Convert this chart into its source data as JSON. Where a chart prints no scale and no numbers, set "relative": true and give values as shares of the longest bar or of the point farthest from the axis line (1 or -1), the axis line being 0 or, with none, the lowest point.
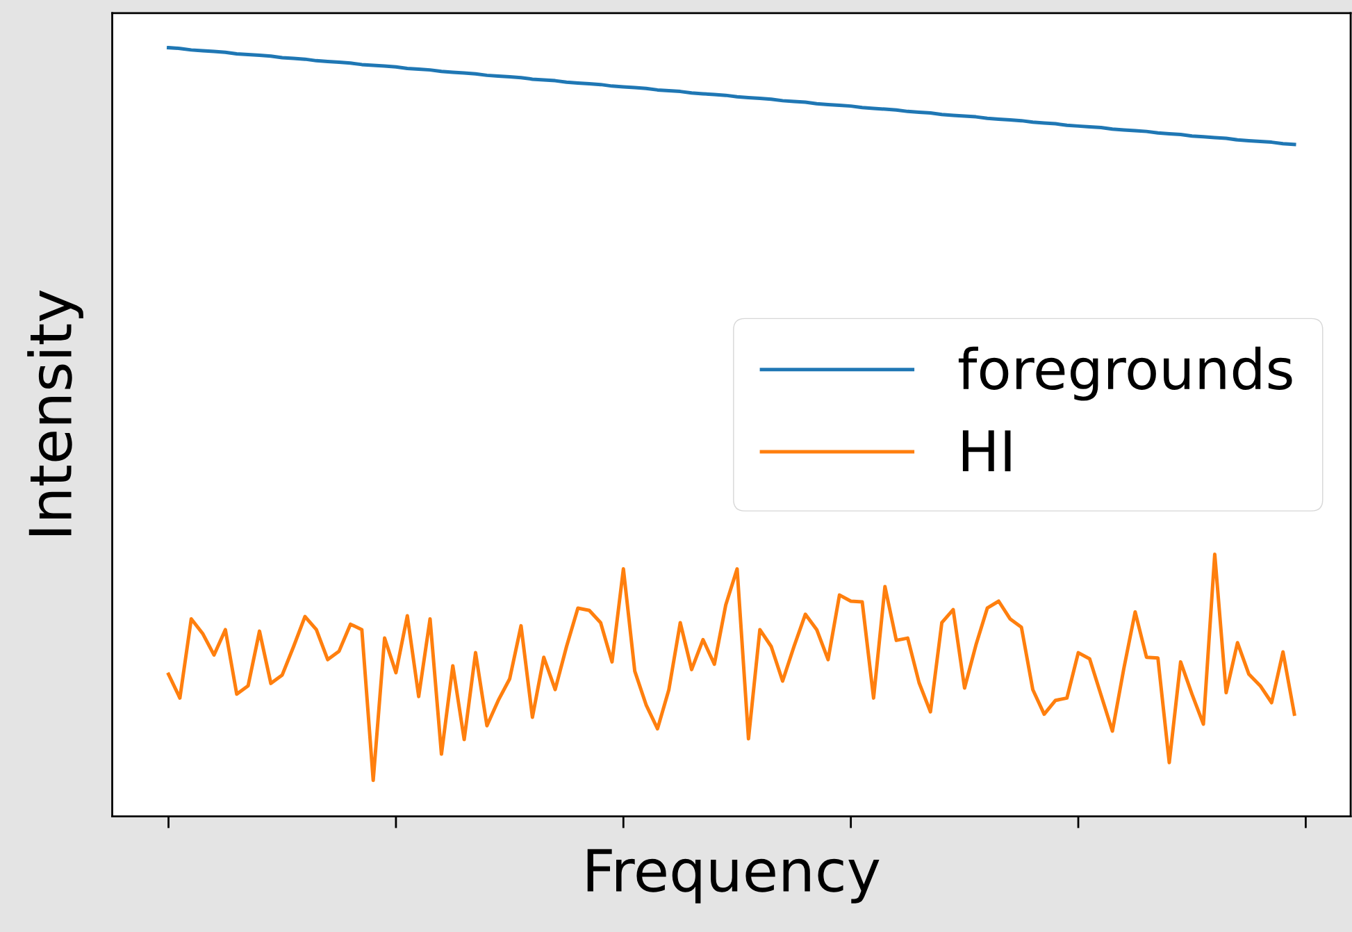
{
  "chart_data": {
    "type": "line",
    "relative": true,
    "xlabel": "Frequency",
    "ylabel": "Intensity",
    "legend": "center right",
    "grid": false,
    "tick_labels": false,
    "categories": [
      null,
      null,
      null,
      null,
      null,
      null,
      null,
      null,
      null,
      null,
      null,
      null,
      null,
      null,
      null,
      null,
      null,
      null,
      null,
      null,
      null,
      null,
      null,
      null,
      null,
      null,
      null,
      null,
      null,
      null,
      null,
      null,
      null,
      null,
      null,
      null,
      null,
      null,
      null,
      null,
      null,
      null,
      null,
      null,
      null,
      null,
      null,
      null,
      null,
      null,
      null,
      null,
      null,
      null,
      null,
      null,
      null,
      null,
      null,
      null,
      null,
      null,
      null,
      null,
      null,
      null,
      null,
      null,
      null,
      null,
      null,
      null,
      null,
      null,
      null,
      null,
      null,
      null,
      null,
      null,
      null,
      null,
      null,
      null,
      null,
      null,
      null,
      null,
      null,
      null,
      null,
      null,
      null,
      null,
      null,
      null,
      null,
      null,
      null,
      null
    ],
    "series": [
      {
        "name": "foregrounds",
        "color": "#1f77b4",
        "values": [
          1.0,
          0.999,
          0.997,
          0.996,
          0.995,
          0.994,
          0.992,
          0.991,
          0.99,
          0.989,
          0.987,
          0.986,
          0.985,
          0.983,
          0.982,
          0.981,
          0.98,
          0.978,
          0.977,
          0.976,
          0.975,
          0.973,
          0.972,
          0.971,
          0.969,
          0.968,
          0.967,
          0.966,
          0.964,
          0.963,
          0.962,
          0.961,
          0.959,
          0.958,
          0.957,
          0.955,
          0.954,
          0.953,
          0.952,
          0.95,
          0.949,
          0.948,
          0.947,
          0.945,
          0.944,
          0.943,
          0.941,
          0.94,
          0.939,
          0.938,
          0.936,
          0.935,
          0.934,
          0.933,
          0.931,
          0.93,
          0.929,
          0.927,
          0.926,
          0.925,
          0.924,
          0.922,
          0.921,
          0.92,
          0.919,
          0.917,
          0.916,
          0.915,
          0.913,
          0.912,
          0.911,
          0.91,
          0.908,
          0.907,
          0.906,
          0.905,
          0.903,
          0.902,
          0.901,
          0.899,
          0.898,
          0.897,
          0.896,
          0.894,
          0.893,
          0.892,
          0.891,
          0.889,
          0.888,
          0.887,
          0.885,
          0.884,
          0.883,
          0.882,
          0.88,
          0.879,
          0.878,
          0.877,
          0.875,
          0.874
        ]
      },
      {
        "name": "HI",
        "color": "#ff7f0e",
        "values": [
          0.185,
          0.154,
          0.257,
          0.238,
          0.21,
          0.243,
          0.159,
          0.17,
          0.241,
          0.173,
          0.184,
          0.221,
          0.26,
          0.243,
          0.204,
          0.215,
          0.25,
          0.243,
          0.047,
          0.232,
          0.187,
          0.261,
          0.156,
          0.257,
          0.081,
          0.196,
          0.1,
          0.213,
          0.118,
          0.151,
          0.179,
          0.248,
          0.129,
          0.207,
          0.165,
          0.221,
          0.271,
          0.268,
          0.252,
          0.201,
          0.322,
          0.189,
          0.145,
          0.114,
          0.165,
          0.252,
          0.191,
          0.23,
          0.198,
          0.275,
          0.322,
          0.101,
          0.243,
          0.221,
          0.176,
          0.221,
          0.263,
          0.243,
          0.204,
          0.288,
          0.28,
          0.279,
          0.154,
          0.299,
          0.229,
          0.232,
          0.174,
          0.136,
          0.252,
          0.269,
          0.167,
          0.223,
          0.271,
          0.28,
          0.257,
          0.246,
          0.165,
          0.133,
          0.151,
          0.154,
          0.213,
          0.205,
          0.158,
          0.111,
          0.192,
          0.266,
          0.207,
          0.206,
          0.07,
          0.201,
          0.159,
          0.12,
          0.341,
          0.161,
          0.226,
          0.185,
          0.17,
          0.148,
          0.214,
          0.133
        ]
      }
    ]
  }
}
